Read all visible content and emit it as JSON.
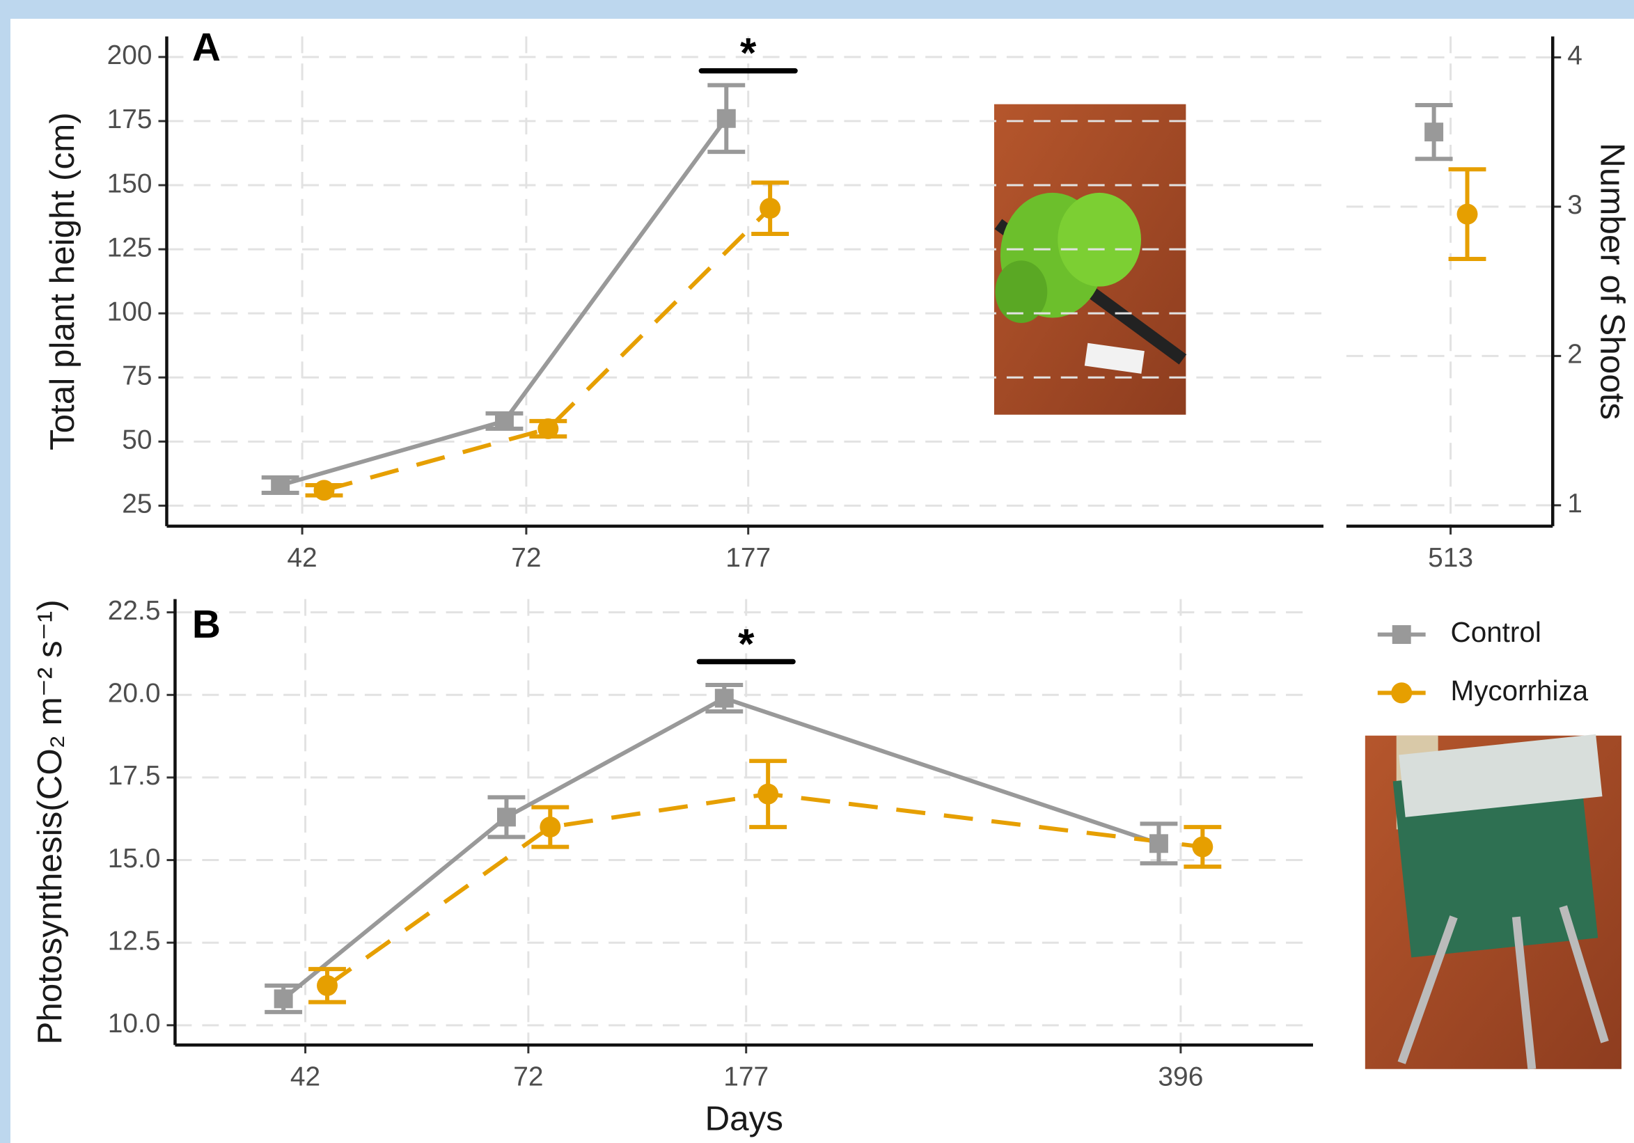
{
  "chart_data": [
    {
      "type": "line",
      "panel_label": "A",
      "y_label": "Total plant height (cm)",
      "annotation": "*",
      "categories": [
        "42",
        "72",
        "177"
      ],
      "series": [
        {
          "name": "Control",
          "color": "#999999",
          "values": [
            33,
            58,
            176
          ],
          "errors": [
            3,
            3,
            13
          ]
        },
        {
          "name": "Mycorrhiza",
          "color": "#E69F00",
          "values": [
            31,
            55,
            141
          ],
          "errors": [
            2,
            3,
            10
          ]
        }
      ],
      "ylim": [
        17,
        208
      ],
      "yticks": [
        25,
        50,
        75,
        100,
        125,
        150,
        175,
        200
      ],
      "grid": true
    },
    {
      "type": "point",
      "y_label": "Number of Shoots",
      "categories": [
        "513"
      ],
      "series": [
        {
          "name": "Control",
          "color": "#999999",
          "values": [
            3.5
          ],
          "errors": [
            0.18
          ]
        },
        {
          "name": "Mycorrhiza",
          "color": "#E69F00",
          "values": [
            2.95
          ],
          "errors": [
            0.3
          ]
        }
      ],
      "ylim": [
        0.86,
        4.14
      ],
      "yticks": [
        1,
        2,
        3,
        4
      ],
      "grid": true
    },
    {
      "type": "line",
      "panel_label": "B",
      "y_label": "Photosynthesis(CO₂ m⁻² s⁻¹)",
      "x_label": "Days",
      "annotation": "*",
      "categories": [
        "42",
        "72",
        "177",
        "396"
      ],
      "series": [
        {
          "name": "Control",
          "color": "#999999",
          "values": [
            10.8,
            16.3,
            19.9,
            15.5
          ],
          "errors": [
            0.4,
            0.6,
            0.4,
            0.6
          ]
        },
        {
          "name": "Mycorrhiza",
          "color": "#E69F00",
          "values": [
            11.2,
            16.0,
            17.0,
            15.4
          ],
          "errors": [
            0.5,
            0.6,
            1.0,
            0.6
          ]
        }
      ],
      "ylim": [
        9.4,
        22.9
      ],
      "yticks": [
        {
          "value": 10,
          "label": "10.0"
        },
        12.5,
        {
          "value": 15,
          "label": "15.0"
        },
        17.5,
        {
          "value": 20,
          "label": "20.0"
        },
        22.5
      ],
      "grid": true
    }
  ]
}
